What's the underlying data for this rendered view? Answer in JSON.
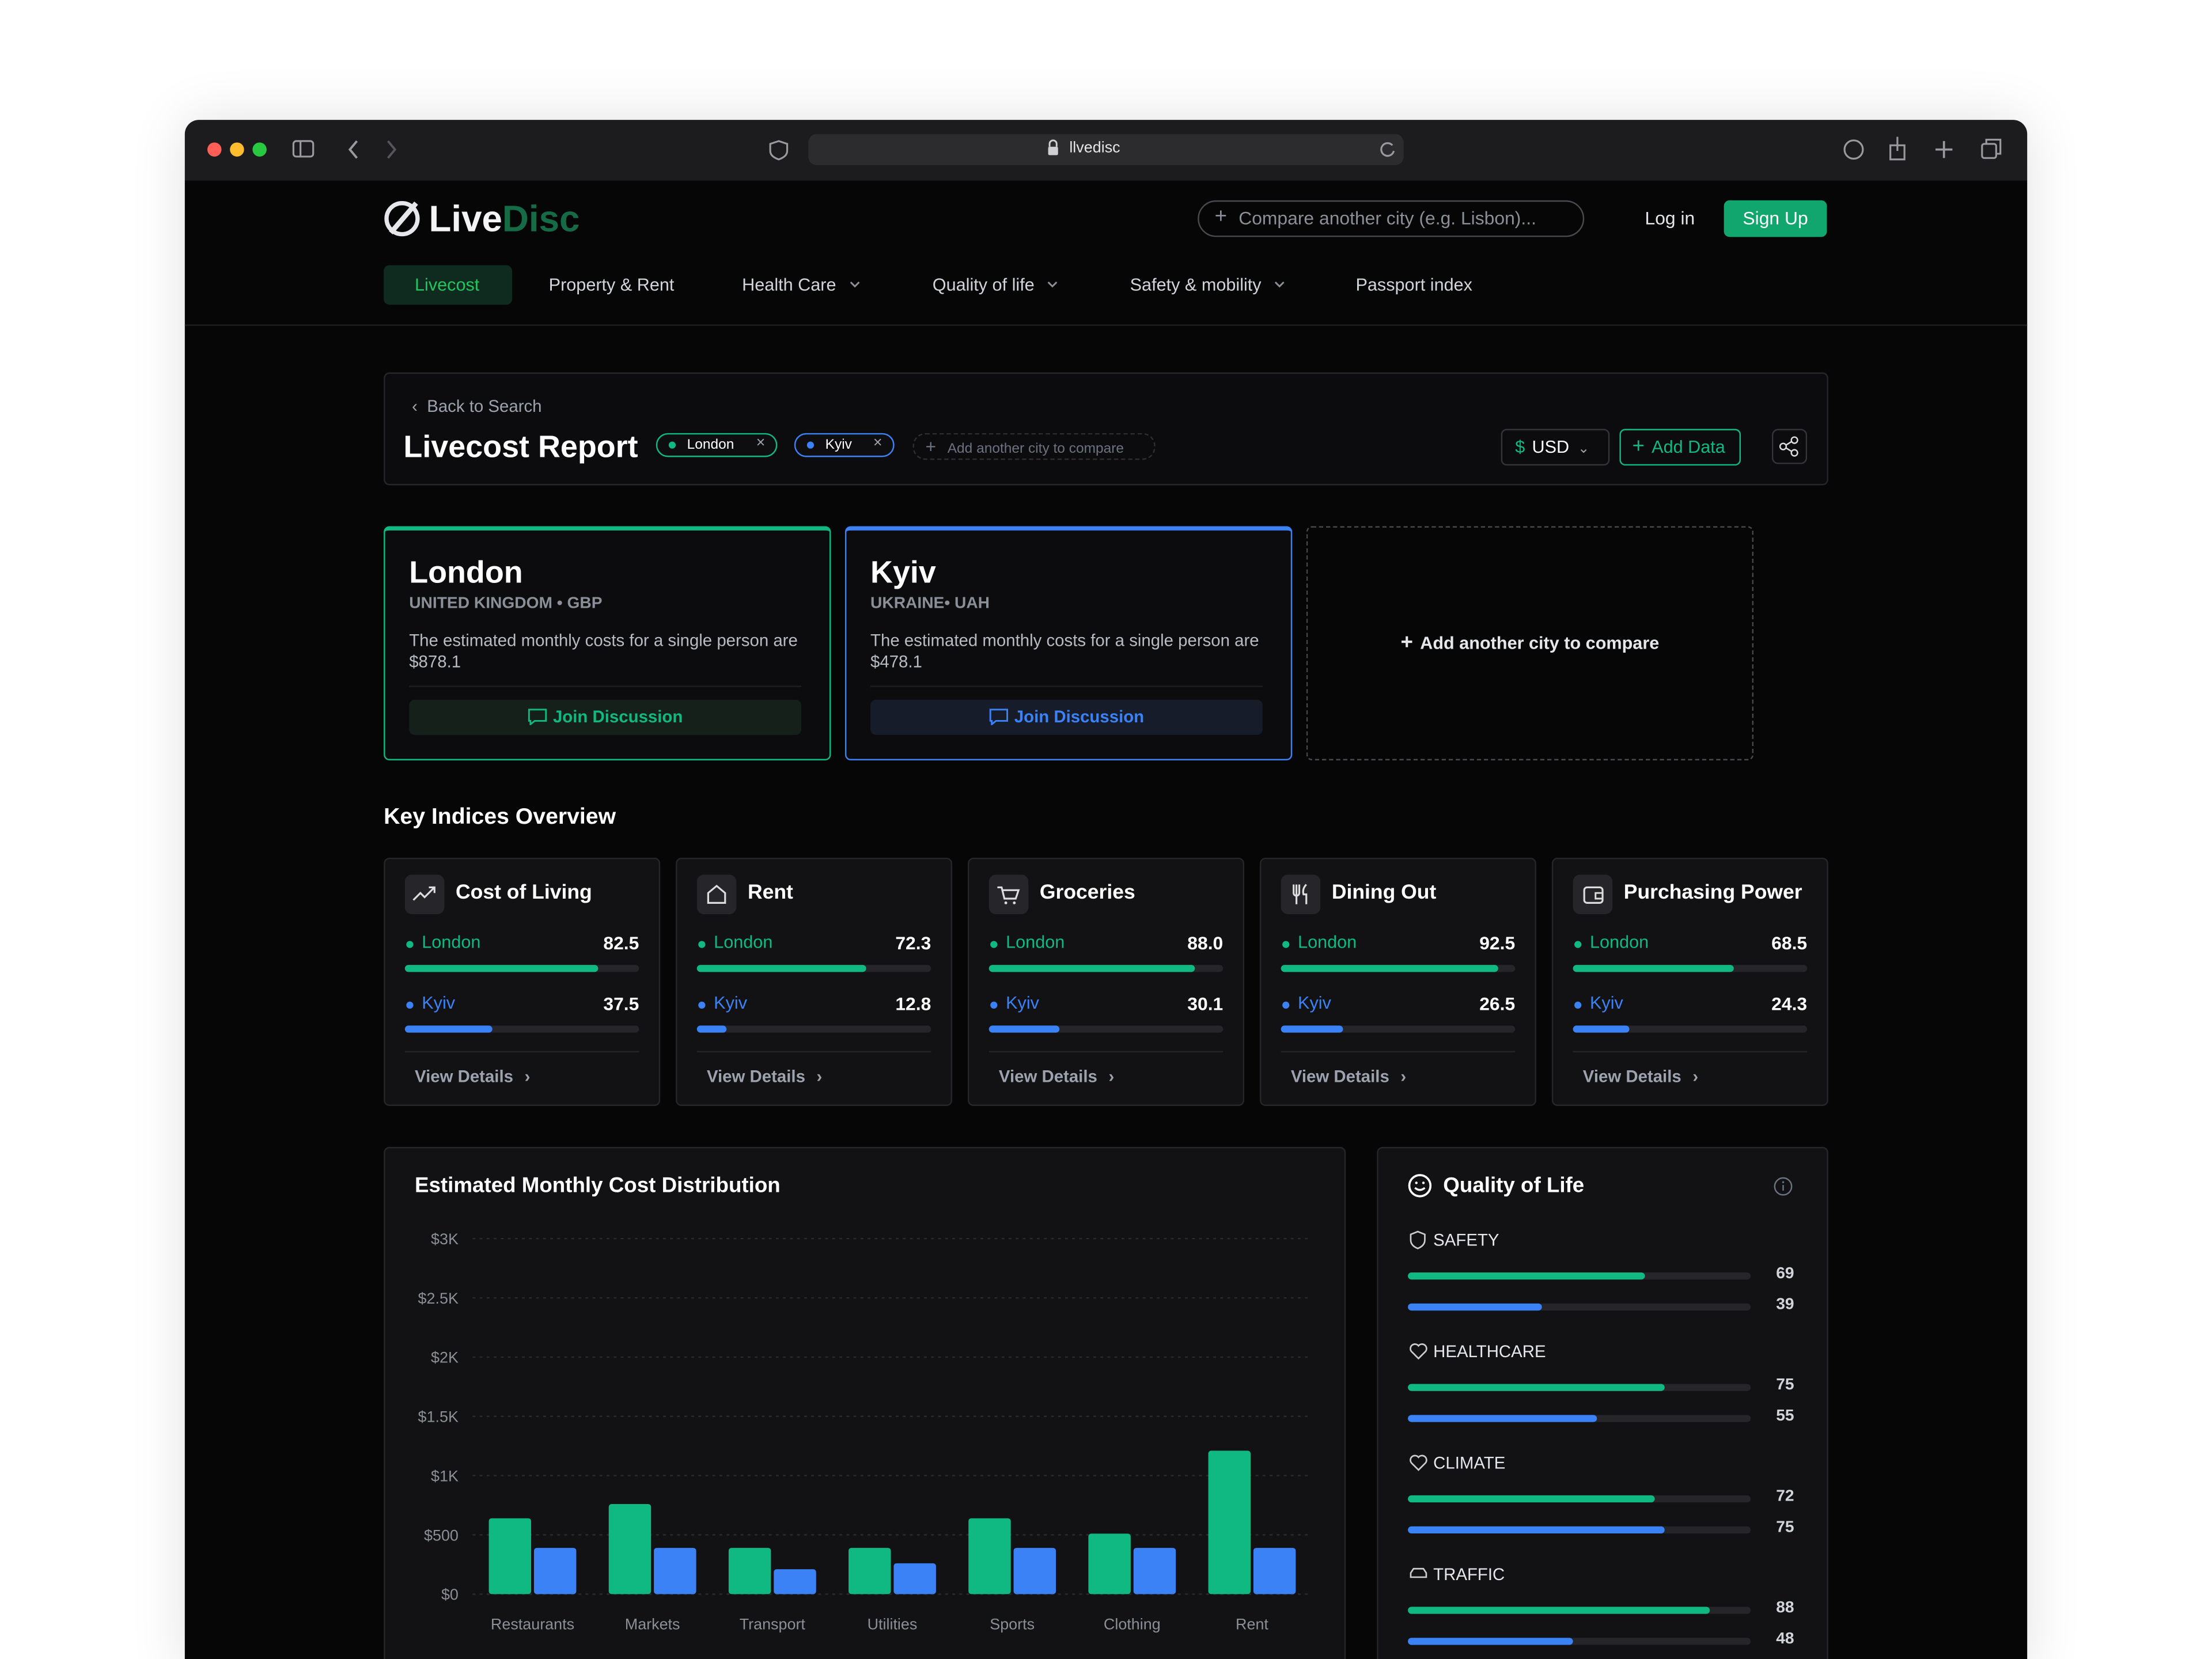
{
  "browser": {
    "url": "llvedisc"
  },
  "header": {
    "logo_primary": "Live",
    "logo_secondary": "Disc",
    "search_placeholder": "Compare another city (e.g. Lisbon)...",
    "login": "Log in",
    "signup": "Sign Up"
  },
  "nav": [
    "Livecost",
    "Property & Rent",
    "Health Care",
    "Quality of life",
    "Safety & mobility",
    "Passport index"
  ],
  "report": {
    "back": "Back to Search",
    "title": "Livecost Report",
    "add_chip": "Add another city to compare",
    "currency": "USD",
    "add_data": "Add Data"
  },
  "cities": [
    {
      "name": "London",
      "color": "#10b981",
      "meta": "UNITED KINGDOM • GBP",
      "description": "The estimated monthly costs for a single person are $878.1",
      "action": "Join Discussion"
    },
    {
      "name": "Kyiv",
      "color": "#3b82f6",
      "meta": "UKRAINE• UAH",
      "description": "The estimated monthly costs for a single person are $478.1",
      "action": "Join Discussion"
    }
  ],
  "add_city": "Add another city to compare",
  "key_indices": {
    "title": "Key Indices Overview",
    "range": [
      0,
      100
    ],
    "link": "View Details",
    "cards": [
      {
        "title": "Cost of Living",
        "values": [
          82.5,
          37.5
        ]
      },
      {
        "title": "Rent",
        "values": [
          72.3,
          12.8
        ]
      },
      {
        "title": "Groceries",
        "values": [
          88.0,
          30.1
        ],
        "value_labels": [
          "88.0",
          "30.1"
        ]
      },
      {
        "title": "Dining Out",
        "values": [
          92.5,
          26.5
        ]
      },
      {
        "title": "Purchasing Power",
        "values": [
          68.5,
          24.3
        ]
      }
    ]
  },
  "chart_data": {
    "type": "bar",
    "title": "Estimated Monthly Cost Distribution",
    "categories": [
      "Restaurants",
      "Markets",
      "Transport",
      "Utilities",
      "Sports",
      "Clothing",
      "Rent"
    ],
    "series": [
      {
        "color": "#10b981",
        "values": [
          640,
          760,
          390,
          390,
          640,
          510,
          1210
        ]
      },
      {
        "color": "#3b82f6",
        "values": [
          390,
          390,
          210,
          260,
          390,
          390,
          390
        ]
      }
    ],
    "ylim": [
      0,
      3000
    ],
    "yticks": [
      {
        "value": 0,
        "label": "$0"
      },
      {
        "value": 500,
        "label": "$500"
      },
      {
        "value": 1000,
        "label": "$1K"
      },
      {
        "value": 1500,
        "label": "$1.5K"
      },
      {
        "value": 2000,
        "label": "$2K"
      },
      {
        "value": 2500,
        "label": "$2.5K"
      },
      {
        "value": 3000,
        "label": "$3K"
      }
    ],
    "grid": true
  },
  "quality_of_life": {
    "title": "Quality of Life",
    "range": [
      0,
      100
    ],
    "items": [
      {
        "label": "SAFETY",
        "values": [
          69,
          39
        ]
      },
      {
        "label": "HEALTHCARE",
        "values": [
          75,
          55
        ]
      },
      {
        "label": "CLIMATE",
        "values": [
          72,
          75
        ]
      },
      {
        "label": "TRAFFIC",
        "values": [
          88,
          48
        ]
      }
    ]
  }
}
